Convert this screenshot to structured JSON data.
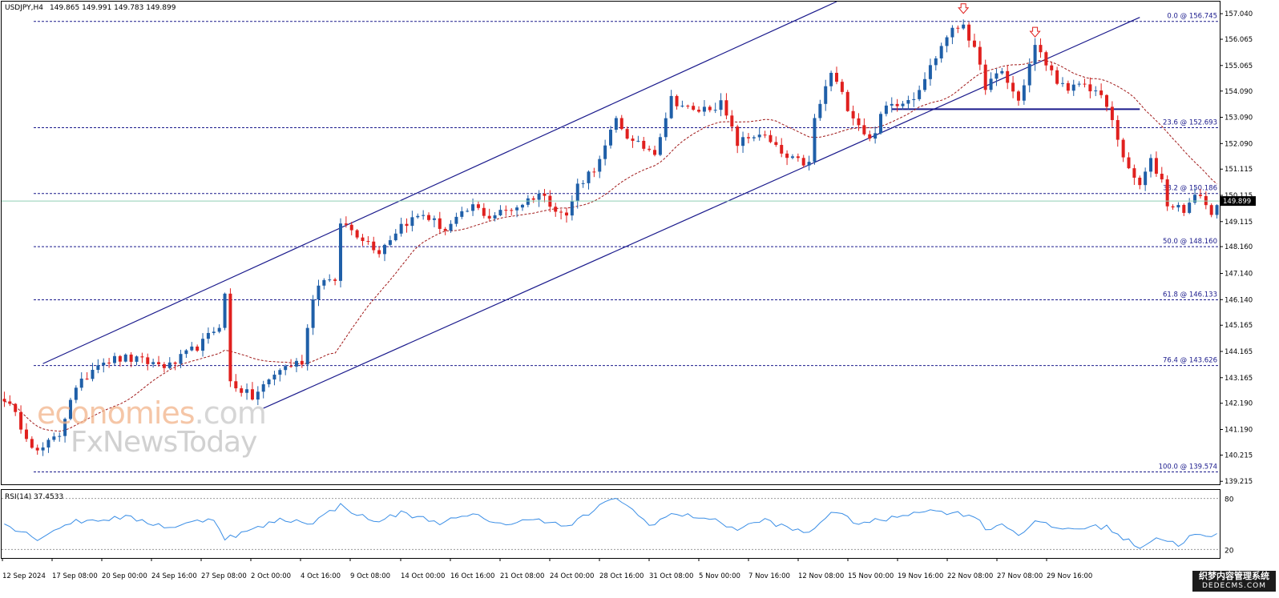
{
  "header": {
    "symbol_label": "USDJPY,H4",
    "ohlc_label": "149.865 149.991 149.783 149.899"
  },
  "rsi": {
    "label": "RSI(14) 37.4533",
    "levels": [
      80,
      20
    ],
    "level_labels": [
      "80",
      "20"
    ]
  },
  "watermark": {
    "line1_a": "economies",
    "line1_b": ".com",
    "line2": "FxNewsToday"
  },
  "corner_logo": {
    "line1": "织梦内容管理系统",
    "line2": "DEDECMS.COM"
  },
  "colors": {
    "bull": "#1f5fa8",
    "bear": "#e0201e",
    "channel": "#1a1a8c",
    "fib": "#1a1a8c",
    "ma": "#a01818",
    "rsi": "#3a8ee6",
    "current_price_line": "#8fcfb4"
  },
  "chart_data": {
    "type": "candlestick",
    "title": "USDJPY,H4",
    "x_tick_labels": [
      "12 Sep 2024",
      "17 Sep 08:00",
      "20 Sep 00:00",
      "24 Sep 16:00",
      "27 Sep 08:00",
      "2 Oct 00:00",
      "4 Oct 16:00",
      "9 Oct 08:00",
      "14 Oct 00:00",
      "16 Oct 16:00",
      "21 Oct 08:00",
      "24 Oct 00:00",
      "28 Oct 16:00",
      "31 Oct 08:00",
      "5 Nov 00:00",
      "7 Nov 16:00",
      "12 Nov 08:00",
      "15 Nov 00:00",
      "19 Nov 16:00",
      "22 Nov 08:00",
      "27 Nov 08:00",
      "29 Nov 16:00"
    ],
    "y_tick_labels": [
      "157.040",
      "156.065",
      "155.065",
      "154.090",
      "153.090",
      "152.090",
      "151.115",
      "150.115",
      "149.115",
      "148.160",
      "147.140",
      "146.140",
      "145.165",
      "144.165",
      "143.165",
      "142.190",
      "141.190",
      "140.215",
      "139.215"
    ],
    "ylim": [
      139.1,
      157.5
    ],
    "current_price": 149.899,
    "current_price_label": "149.899",
    "fibonacci": [
      {
        "label": "0.0 @ 156.745",
        "price": 156.745
      },
      {
        "label": "23.6 @ 152.693",
        "price": 152.693
      },
      {
        "label": "38.2 @ 150.186",
        "price": 150.186
      },
      {
        "label": "50.0 @ 148.160",
        "price": 148.16
      },
      {
        "label": "61.8 @ 146.133",
        "price": 146.133
      },
      {
        "label": "76.4 @ 143.626",
        "price": 143.626
      },
      {
        "label": "100.0 @ 139.574",
        "price": 139.574
      }
    ],
    "trendlines": [
      {
        "name": "channel-upper",
        "from": [
          7,
          143.7
        ],
        "to": [
          151,
          157.5
        ]
      },
      {
        "name": "channel-lower",
        "from": [
          47,
          142.0
        ],
        "to": [
          206,
          156.9
        ]
      },
      {
        "name": "neckline",
        "from": [
          161,
          153.4
        ],
        "to": [
          206,
          153.4
        ]
      }
    ],
    "arrows": [
      {
        "bar": 174,
        "price": 156.745
      },
      {
        "bar": 187,
        "price": 155.85
      }
    ],
    "close_path": [
      [
        0,
        142.4
      ],
      [
        6,
        140.3
      ],
      [
        10,
        141.0
      ],
      [
        12,
        142.4
      ],
      [
        17,
        143.8
      ],
      [
        22,
        143.9
      ],
      [
        30,
        143.6
      ],
      [
        36,
        144.5
      ],
      [
        39,
        145.2
      ],
      [
        40,
        146.3
      ],
      [
        41,
        143.0
      ],
      [
        45,
        142.4
      ],
      [
        50,
        143.5
      ],
      [
        54,
        143.8
      ],
      [
        56,
        146.3
      ],
      [
        58,
        147.0
      ],
      [
        60,
        146.7
      ],
      [
        61,
        149.1
      ],
      [
        65,
        148.5
      ],
      [
        68,
        148.0
      ],
      [
        72,
        149.0
      ],
      [
        76,
        149.4
      ],
      [
        80,
        148.8
      ],
      [
        85,
        149.7
      ],
      [
        88,
        149.3
      ],
      [
        93,
        149.7
      ],
      [
        97,
        150.2
      ],
      [
        102,
        149.3
      ],
      [
        104,
        150.5
      ],
      [
        108,
        151.4
      ],
      [
        111,
        153.0
      ],
      [
        114,
        152.1
      ],
      [
        118,
        151.8
      ],
      [
        121,
        153.8
      ],
      [
        125,
        153.3
      ],
      [
        130,
        153.6
      ],
      [
        133,
        152.1
      ],
      [
        137,
        152.5
      ],
      [
        142,
        151.5
      ],
      [
        146,
        151.3
      ],
      [
        147,
        153.0
      ],
      [
        150,
        154.8
      ],
      [
        153,
        153.5
      ],
      [
        157,
        152.2
      ],
      [
        160,
        153.5
      ],
      [
        165,
        153.9
      ],
      [
        168,
        155.0
      ],
      [
        171,
        156.2
      ],
      [
        174,
        156.7
      ],
      [
        176,
        155.6
      ],
      [
        178,
        154.3
      ],
      [
        181,
        154.8
      ],
      [
        184,
        153.7
      ],
      [
        187,
        155.8
      ],
      [
        190,
        154.8
      ],
      [
        193,
        154.0
      ],
      [
        195,
        154.4
      ],
      [
        198,
        154.1
      ],
      [
        200,
        153.5
      ],
      [
        202,
        152.3
      ],
      [
        204,
        151.0
      ],
      [
        206,
        150.5
      ],
      [
        208,
        151.4
      ],
      [
        210,
        150.7
      ],
      [
        211,
        149.8
      ],
      [
        214,
        149.6
      ],
      [
        217,
        150.2
      ],
      [
        219,
        149.3
      ],
      [
        220,
        149.9
      ]
    ],
    "rsi_path": [
      [
        0,
        50
      ],
      [
        6,
        33
      ],
      [
        12,
        52
      ],
      [
        22,
        58
      ],
      [
        30,
        46
      ],
      [
        38,
        57
      ],
      [
        40,
        33
      ],
      [
        45,
        43
      ],
      [
        50,
        55
      ],
      [
        56,
        52
      ],
      [
        61,
        72
      ],
      [
        67,
        52
      ],
      [
        72,
        63
      ],
      [
        79,
        52
      ],
      [
        85,
        60
      ],
      [
        92,
        48
      ],
      [
        96,
        58
      ],
      [
        102,
        46
      ],
      [
        106,
        62
      ],
      [
        111,
        82
      ],
      [
        117,
        49
      ],
      [
        121,
        61
      ],
      [
        127,
        58
      ],
      [
        133,
        44
      ],
      [
        138,
        55
      ],
      [
        142,
        45
      ],
      [
        146,
        39
      ],
      [
        150,
        65
      ],
      [
        155,
        51
      ],
      [
        160,
        55
      ],
      [
        166,
        66
      ],
      [
        171,
        64
      ],
      [
        176,
        60
      ],
      [
        178,
        44
      ],
      [
        181,
        50
      ],
      [
        184,
        38
      ],
      [
        187,
        52
      ],
      [
        192,
        44
      ],
      [
        197,
        46
      ],
      [
        200,
        47
      ],
      [
        203,
        33
      ],
      [
        206,
        23
      ],
      [
        209,
        34
      ],
      [
        213,
        26
      ],
      [
        216,
        38
      ],
      [
        219,
        33
      ],
      [
        220,
        37
      ]
    ]
  }
}
